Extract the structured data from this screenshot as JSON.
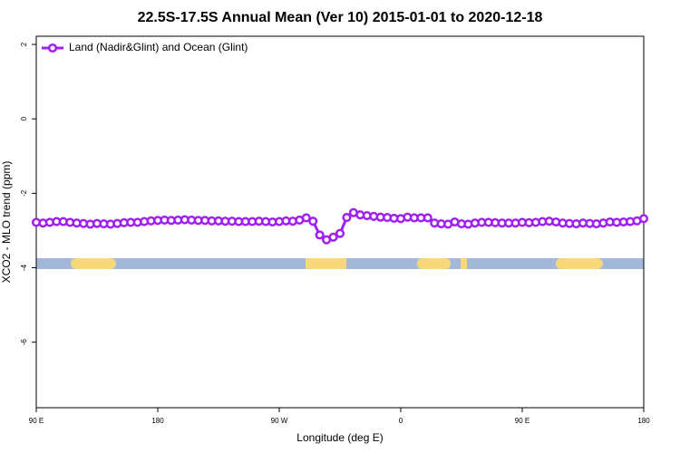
{
  "chart_data": {
    "type": "line",
    "title": "22.5S-17.5S Annual Mean (Ver 10)   2015-01-01 to 2020-12-18",
    "x_label": "Longitude (deg E)",
    "y_label": "XCO2 - MLO trend (ppm)",
    "x": [
      90,
      95,
      100,
      105,
      110,
      115,
      120,
      125,
      130,
      135,
      140,
      145,
      150,
      155,
      160,
      165,
      170,
      175,
      180,
      185,
      190,
      195,
      200,
      205,
      210,
      215,
      220,
      225,
      230,
      235,
      240,
      245,
      250,
      255,
      260,
      265,
      270,
      275,
      280,
      285,
      290,
      295,
      300,
      305,
      310,
      315,
      320,
      325,
      330,
      335,
      340,
      345,
      350,
      355,
      360,
      365,
      370,
      375,
      380,
      385,
      390,
      395,
      400,
      405,
      410,
      415,
      420,
      425,
      430,
      435,
      440,
      445,
      450,
      455,
      460,
      465,
      470,
      475,
      480,
      485,
      490,
      495,
      500,
      505,
      510,
      515,
      520,
      525,
      530,
      535,
      540
    ],
    "series": [
      {
        "name": "Land (Nadir&Glint) and Ocean (Glint)",
        "color": "#a020f0",
        "values": [
          -2.78,
          -2.8,
          -2.78,
          -2.76,
          -2.76,
          -2.78,
          -2.8,
          -2.81,
          -2.83,
          -2.81,
          -2.82,
          -2.83,
          -2.81,
          -2.79,
          -2.78,
          -2.78,
          -2.76,
          -2.74,
          -2.73,
          -2.72,
          -2.73,
          -2.72,
          -2.71,
          -2.72,
          -2.73,
          -2.73,
          -2.74,
          -2.74,
          -2.75,
          -2.75,
          -2.76,
          -2.76,
          -2.76,
          -2.75,
          -2.76,
          -2.77,
          -2.76,
          -2.74,
          -2.75,
          -2.72,
          -2.66,
          -2.75,
          -3.12,
          -3.25,
          -3.18,
          -3.08,
          -2.65,
          -2.52,
          -2.58,
          -2.6,
          -2.62,
          -2.64,
          -2.65,
          -2.67,
          -2.68,
          -2.64,
          -2.66,
          -2.66,
          -2.66,
          -2.8,
          -2.82,
          -2.83,
          -2.77,
          -2.82,
          -2.83,
          -2.8,
          -2.78,
          -2.78,
          -2.79,
          -2.8,
          -2.8,
          -2.8,
          -2.78,
          -2.79,
          -2.78,
          -2.76,
          -2.75,
          -2.77,
          -2.8,
          -2.81,
          -2.82,
          -2.8,
          -2.81,
          -2.82,
          -2.8,
          -2.77,
          -2.78,
          -2.77,
          -2.76,
          -2.74,
          -2.68
        ]
      }
    ],
    "xlim": [
      90,
      540
    ],
    "xticks": [
      {
        "value": 90,
        "label": "90 E"
      },
      180,
      {
        "value": 270,
        "label": "90 W"
      },
      {
        "value": 360,
        "label": "0"
      },
      {
        "value": 450,
        "label": "90 E"
      },
      {
        "value": 540,
        "label": "180"
      }
    ],
    "ylim": [
      -7.76,
      2.22
    ],
    "yticks": [
      -6,
      -4,
      -2,
      0,
      2
    ],
    "legend": "top-left"
  }
}
